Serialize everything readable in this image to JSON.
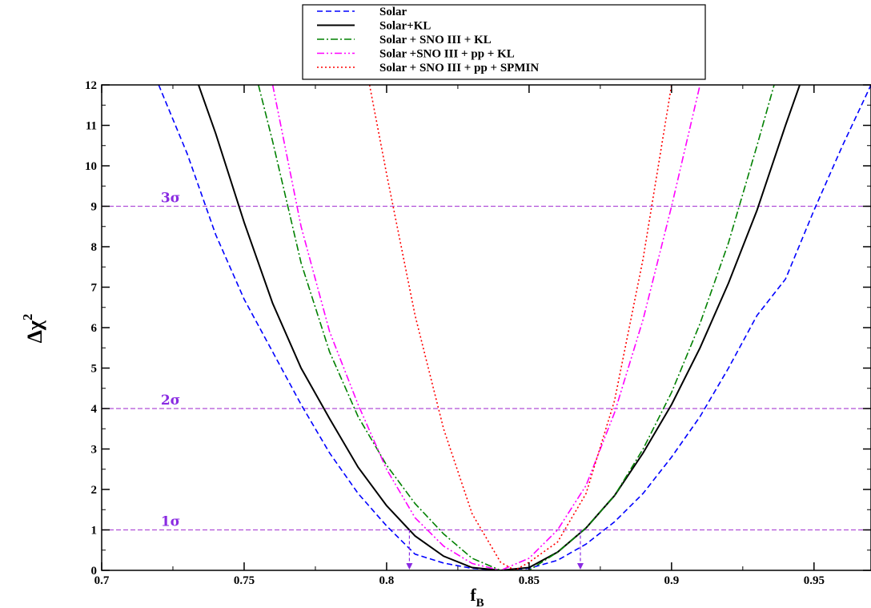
{
  "chart_data": {
    "type": "line",
    "xlabel": "f",
    "xlabel_sub": "B",
    "ylabel": "Δχ",
    "ylabel_sup": "2",
    "xlim": [
      0.7,
      0.97
    ],
    "ylim": [
      0,
      12
    ],
    "x_ticks": [
      "0.7",
      "0.75",
      "0.8",
      "0.85",
      "0.9",
      "0.95"
    ],
    "y_ticks": [
      "0",
      "1",
      "2",
      "3",
      "4",
      "5",
      "6",
      "7",
      "8",
      "9",
      "10",
      "11",
      "12"
    ],
    "legend_position": "top-center",
    "series": [
      {
        "name": "Solar",
        "color": "#0000ff",
        "dash": "dashed",
        "points": [
          [
            0.72,
            12.0
          ],
          [
            0.73,
            10.3
          ],
          [
            0.74,
            8.3
          ],
          [
            0.75,
            6.7
          ],
          [
            0.76,
            5.4
          ],
          [
            0.77,
            4.1
          ],
          [
            0.78,
            2.9
          ],
          [
            0.79,
            1.9
          ],
          [
            0.8,
            1.1
          ],
          [
            0.81,
            0.4
          ],
          [
            0.82,
            0.18
          ],
          [
            0.83,
            0.05
          ],
          [
            0.84,
            0.0
          ],
          [
            0.85,
            0.05
          ],
          [
            0.86,
            0.25
          ],
          [
            0.87,
            0.65
          ],
          [
            0.88,
            1.2
          ],
          [
            0.89,
            1.9
          ],
          [
            0.9,
            2.8
          ],
          [
            0.91,
            3.8
          ],
          [
            0.92,
            5.0
          ],
          [
            0.93,
            6.3
          ],
          [
            0.94,
            7.2
          ],
          [
            0.95,
            8.9
          ],
          [
            0.96,
            10.5
          ],
          [
            0.97,
            12.0
          ]
        ]
      },
      {
        "name": "Solar+KL",
        "color": "#000000",
        "dash": "solid",
        "points": [
          [
            0.734,
            12.0
          ],
          [
            0.74,
            10.8
          ],
          [
            0.75,
            8.6
          ],
          [
            0.76,
            6.6
          ],
          [
            0.77,
            5.0
          ],
          [
            0.78,
            3.75
          ],
          [
            0.79,
            2.55
          ],
          [
            0.8,
            1.6
          ],
          [
            0.81,
            0.85
          ],
          [
            0.82,
            0.35
          ],
          [
            0.83,
            0.07
          ],
          [
            0.84,
            0.0
          ],
          [
            0.85,
            0.07
          ],
          [
            0.86,
            0.45
          ],
          [
            0.87,
            1.05
          ],
          [
            0.88,
            1.85
          ],
          [
            0.89,
            2.9
          ],
          [
            0.9,
            4.1
          ],
          [
            0.91,
            5.5
          ],
          [
            0.92,
            7.1
          ],
          [
            0.93,
            8.9
          ],
          [
            0.94,
            11.0
          ],
          [
            0.945,
            12.0
          ]
        ]
      },
      {
        "name": "Solar + SNO III + KL",
        "color": "#008000",
        "dash": "dashdot",
        "points": [
          [
            0.755,
            12.0
          ],
          [
            0.76,
            10.6
          ],
          [
            0.77,
            7.6
          ],
          [
            0.78,
            5.4
          ],
          [
            0.79,
            3.8
          ],
          [
            0.8,
            2.6
          ],
          [
            0.81,
            1.65
          ],
          [
            0.82,
            0.9
          ],
          [
            0.83,
            0.3
          ],
          [
            0.84,
            0.0
          ],
          [
            0.85,
            0.0
          ],
          [
            0.86,
            0.45
          ],
          [
            0.87,
            1.05
          ],
          [
            0.88,
            1.85
          ],
          [
            0.89,
            3.0
          ],
          [
            0.9,
            4.4
          ],
          [
            0.91,
            6.1
          ],
          [
            0.92,
            8.1
          ],
          [
            0.93,
            10.5
          ],
          [
            0.936,
            12.0
          ]
        ]
      },
      {
        "name": "Solar +SNO III + pp + KL",
        "color": "#ff00ff",
        "dash": "dashdotdot",
        "points": [
          [
            0.76,
            12.0
          ],
          [
            0.77,
            8.5
          ],
          [
            0.78,
            5.9
          ],
          [
            0.79,
            4.1
          ],
          [
            0.8,
            2.5
          ],
          [
            0.81,
            1.3
          ],
          [
            0.82,
            0.6
          ],
          [
            0.83,
            0.17
          ],
          [
            0.84,
            0.0
          ],
          [
            0.85,
            0.3
          ],
          [
            0.86,
            1.0
          ],
          [
            0.87,
            2.1
          ],
          [
            0.88,
            3.9
          ],
          [
            0.89,
            6.2
          ],
          [
            0.9,
            9.0
          ],
          [
            0.91,
            12.0
          ]
        ]
      },
      {
        "name": "Solar + SNO III + pp + SPMIN",
        "color": "#ff0000",
        "dash": "dotted",
        "points": [
          [
            0.794,
            12.0
          ],
          [
            0.8,
            9.8
          ],
          [
            0.81,
            6.3
          ],
          [
            0.82,
            3.5
          ],
          [
            0.83,
            1.4
          ],
          [
            0.84,
            0.2
          ],
          [
            0.845,
            0.0
          ],
          [
            0.85,
            0.2
          ],
          [
            0.86,
            0.7
          ],
          [
            0.87,
            1.9
          ],
          [
            0.88,
            4.2
          ],
          [
            0.89,
            7.7
          ],
          [
            0.9,
            12.0
          ]
        ]
      }
    ],
    "reference_lines": [
      {
        "y": 1,
        "label": "1σ"
      },
      {
        "y": 4,
        "label": "2σ"
      },
      {
        "y": 9,
        "label": "3σ"
      }
    ],
    "reference_color": "#b04fd8",
    "marker_arrows": [
      0.808,
      0.868
    ]
  }
}
